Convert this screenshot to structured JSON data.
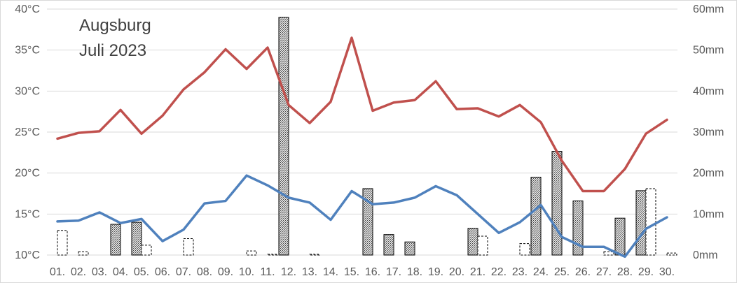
{
  "chart_data": {
    "type": "bar+line",
    "title": "Augsburg",
    "subtitle": "Juli 2023",
    "categories": [
      "01.",
      "02.",
      "03.",
      "04.",
      "05.",
      "06.",
      "07.",
      "08.",
      "09.",
      "10.",
      "11.",
      "12.",
      "13.",
      "14.",
      "15.",
      "16.",
      "17.",
      "18.",
      "19.",
      "20.",
      "21.",
      "22.",
      "23.",
      "24.",
      "25.",
      "26.",
      "27.",
      "28.",
      "29.",
      "30."
    ],
    "y_left": {
      "ticks": [
        "10°C",
        "15°C",
        "20°C",
        "25°C",
        "30°C",
        "35°C",
        "40°C"
      ],
      "ylim": [
        10,
        40
      ]
    },
    "y_right": {
      "ticks": [
        "0mm",
        "10mm",
        "20mm",
        "30mm",
        "40mm",
        "50mm",
        "60mm"
      ],
      "ylim": [
        0,
        60
      ]
    },
    "grid": true,
    "series": [
      {
        "kind": "line",
        "axis": "left",
        "color": "#c0504d",
        "values": [
          24.2,
          24.9,
          25.1,
          27.7,
          24.8,
          27.0,
          30.2,
          32.3,
          35.1,
          32.7,
          35.3,
          28.3,
          26.1,
          28.7,
          36.5,
          27.6,
          28.6,
          28.9,
          31.2,
          27.8,
          27.9,
          26.9,
          28.3,
          26.2,
          21.5,
          17.8,
          17.8,
          20.5,
          24.8,
          26.5
        ]
      },
      {
        "kind": "line",
        "axis": "left",
        "color": "#4f81bd",
        "values": [
          14.1,
          14.2,
          15.2,
          13.9,
          14.4,
          11.7,
          13.1,
          16.3,
          16.6,
          19.7,
          18.5,
          17.0,
          16.4,
          14.3,
          17.8,
          16.2,
          16.4,
          17.0,
          18.4,
          17.3,
          15.0,
          12.7,
          14.0,
          16.1,
          12.2,
          11.0,
          11.0,
          9.8,
          13.2,
          14.6
        ]
      },
      {
        "kind": "bar",
        "axis": "right",
        "pattern": "hatched",
        "values": [
          0,
          0,
          0,
          7.5,
          8.0,
          0,
          0,
          0,
          0,
          0,
          0,
          58.0,
          0,
          0,
          0,
          16.2,
          5.0,
          3.2,
          0,
          0,
          6.5,
          0,
          0,
          19.0,
          25.3,
          13.2,
          0,
          9.0,
          15.7,
          0
        ]
      },
      {
        "kind": "bar",
        "axis": "right",
        "pattern": "outline-dashed",
        "values": [
          6.0,
          0.8,
          0,
          0,
          2.4,
          0,
          4.0,
          0,
          0,
          1.0,
          0.2,
          0,
          0.2,
          0,
          0,
          0,
          0,
          0,
          0,
          0,
          4.6,
          0,
          2.8,
          0,
          0,
          0,
          0.8,
          0,
          16.2,
          0.5
        ]
      }
    ]
  }
}
